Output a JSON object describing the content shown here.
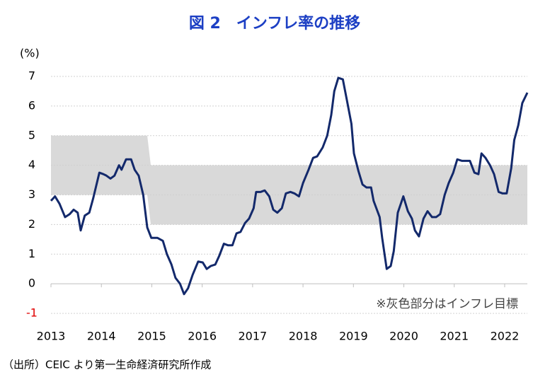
{
  "chart_data": {
    "type": "line",
    "title": "図 2　インフレ率の推移",
    "y_unit": "(%)",
    "annotation": "※灰色部分はインフレ目標",
    "source": "（出所）CEIC より第一生命経済研究所作成",
    "x": [
      2013.0,
      2013.08,
      2013.17,
      2013.28,
      2013.37,
      2013.45,
      2013.53,
      2013.59,
      2013.67,
      2013.76,
      2013.84,
      2013.96,
      2014.04,
      2014.1,
      2014.18,
      2014.26,
      2014.35,
      2014.4,
      2014.49,
      2014.59,
      2014.66,
      2014.74,
      2014.83,
      2014.91,
      2014.99,
      2015.11,
      2015.22,
      2015.3,
      2015.39,
      2015.47,
      2015.56,
      2015.64,
      2015.72,
      2015.81,
      2015.92,
      2016.01,
      2016.09,
      2016.17,
      2016.26,
      2016.34,
      2016.43,
      2016.51,
      2016.6,
      2016.68,
      2016.76,
      2016.85,
      2016.93,
      2017.02,
      2017.07,
      2017.16,
      2017.24,
      2017.33,
      2017.41,
      2017.49,
      2017.58,
      2017.66,
      2017.75,
      2017.83,
      2017.92,
      2018.0,
      2018.11,
      2018.2,
      2018.28,
      2018.39,
      2018.48,
      2018.56,
      2018.62,
      2018.7,
      2018.79,
      2018.87,
      2018.96,
      2019.01,
      2019.1,
      2019.18,
      2019.26,
      2019.35,
      2019.4,
      2019.52,
      2019.57,
      2019.66,
      2019.74,
      2019.8,
      2019.88,
      2019.99,
      2020.08,
      2020.16,
      2020.22,
      2020.3,
      2020.39,
      2020.47,
      2020.56,
      2020.64,
      2020.72,
      2020.81,
      2020.89,
      2020.98,
      2021.06,
      2021.15,
      2021.23,
      2021.31,
      2021.4,
      2021.48,
      2021.54,
      2021.62,
      2021.71,
      2021.79,
      2021.88,
      2021.96,
      2022.04,
      2022.13,
      2022.19,
      2022.27,
      2022.35,
      2022.45
    ],
    "series": [
      {
        "color": "#13296b",
        "values": [
          2.8,
          2.95,
          2.7,
          2.25,
          2.35,
          2.5,
          2.4,
          1.8,
          2.3,
          2.4,
          2.9,
          3.75,
          3.7,
          3.65,
          3.55,
          3.65,
          4.0,
          3.85,
          4.2,
          4.2,
          3.85,
          3.65,
          3.0,
          1.9,
          1.55,
          1.55,
          1.45,
          1.0,
          0.65,
          0.2,
          0.0,
          -0.35,
          -0.15,
          0.3,
          0.75,
          0.72,
          0.5,
          0.6,
          0.65,
          0.95,
          1.35,
          1.3,
          1.3,
          1.7,
          1.75,
          2.05,
          2.2,
          2.55,
          3.1,
          3.1,
          3.15,
          2.95,
          2.5,
          2.4,
          2.55,
          3.05,
          3.1,
          3.05,
          2.95,
          3.4,
          3.85,
          4.25,
          4.3,
          4.6,
          5.0,
          5.7,
          6.5,
          6.95,
          6.9,
          6.2,
          5.4,
          4.4,
          3.8,
          3.35,
          3.25,
          3.25,
          2.8,
          2.25,
          1.55,
          0.5,
          0.6,
          1.1,
          2.4,
          2.95,
          2.45,
          2.2,
          1.8,
          1.6,
          2.2,
          2.45,
          2.25,
          2.25,
          2.35,
          3.0,
          3.4,
          3.75,
          4.2,
          4.15,
          4.15,
          4.15,
          3.75,
          3.7,
          4.4,
          4.25,
          4.0,
          3.7,
          3.1,
          3.05,
          3.05,
          3.9,
          4.85,
          5.35,
          6.1,
          6.45
        ]
      }
    ],
    "target_band": {
      "color": "#d9d9d9",
      "x": [
        2013,
        2014.91,
        2014.98,
        2022.45
      ],
      "lower": [
        3,
        3,
        2,
        2
      ],
      "upper": [
        5,
        5,
        4,
        4
      ]
    },
    "xlim": [
      2013,
      2022.45
    ],
    "xticks": [
      2013,
      2014,
      2015,
      2016,
      2017,
      2018,
      2019,
      2020,
      2021,
      2022
    ],
    "ylim": [
      -1,
      7
    ],
    "yticks": [
      -1,
      0,
      1,
      2,
      3,
      4,
      5,
      6,
      7
    ],
    "negative_tick_color": "#e00000",
    "grid": true
  }
}
